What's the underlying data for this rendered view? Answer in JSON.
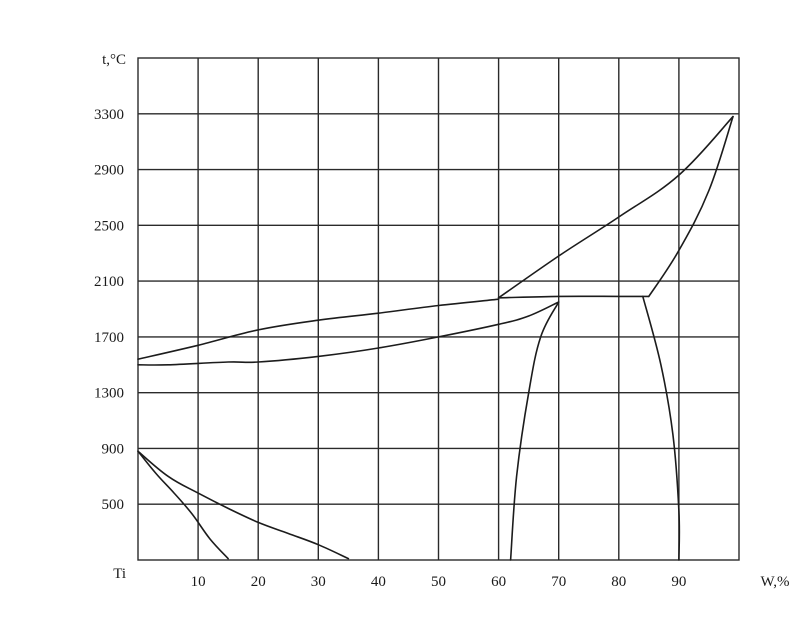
{
  "chart_data": {
    "type": "line",
    "title": "",
    "xlabel": "W,%",
    "ylabel": "t,°C",
    "origin_label": "Ti",
    "xlim": [
      0,
      100
    ],
    "ylim": [
      100,
      3700
    ],
    "x_ticks": [
      10,
      20,
      30,
      40,
      50,
      60,
      70,
      80,
      90
    ],
    "x_tick_labels": [
      "10",
      "20",
      "30",
      "40",
      "50",
      "60",
      "70",
      "80",
      "90"
    ],
    "y_ticks": [
      500,
      900,
      1300,
      1700,
      2100,
      2500,
      2900,
      3300
    ],
    "y_tick_labels": [
      "500",
      "900",
      "1300",
      "1700",
      "2100",
      "2500",
      "2900",
      "3300"
    ],
    "grid": true,
    "legend": "none",
    "series": [
      {
        "id": "liquidus-low",
        "points": [
          [
            0,
            1540
          ],
          [
            10,
            1640
          ],
          [
            20,
            1750
          ],
          [
            30,
            1820
          ],
          [
            40,
            1870
          ],
          [
            50,
            1925
          ],
          [
            60,
            1970
          ]
        ]
      },
      {
        "id": "solidus-low",
        "points": [
          [
            0,
            1500
          ],
          [
            5,
            1500
          ],
          [
            15,
            1520
          ],
          [
            20,
            1520
          ],
          [
            30,
            1560
          ],
          [
            40,
            1620
          ],
          [
            50,
            1700
          ],
          [
            60,
            1790
          ],
          [
            65,
            1850
          ],
          [
            70,
            1950
          ]
        ]
      },
      {
        "id": "liquidus-high",
        "points": [
          [
            60,
            1980
          ],
          [
            70,
            2280
          ],
          [
            80,
            2560
          ],
          [
            90,
            2860
          ],
          [
            99,
            3280
          ]
        ]
      },
      {
        "id": "eutectic-line",
        "points": [
          [
            60,
            1980
          ],
          [
            70,
            1990
          ],
          [
            80,
            1990
          ],
          [
            85,
            1990
          ]
        ]
      },
      {
        "id": "solidus-high",
        "points": [
          [
            85,
            1990
          ],
          [
            90,
            2320
          ],
          [
            95,
            2750
          ],
          [
            99,
            3280
          ]
        ]
      },
      {
        "id": "solvus-left",
        "points": [
          [
            62,
            100
          ],
          [
            63,
            700
          ],
          [
            65,
            1300
          ],
          [
            67,
            1700
          ],
          [
            70,
            1950
          ]
        ]
      },
      {
        "id": "solvus-right",
        "points": [
          [
            84,
            1990
          ],
          [
            87,
            1500
          ],
          [
            89,
            1000
          ],
          [
            90,
            450
          ],
          [
            90,
            100
          ]
        ]
      },
      {
        "id": "transformation-upper",
        "points": [
          [
            0,
            880
          ],
          [
            5,
            700
          ],
          [
            10,
            580
          ],
          [
            15,
            470
          ],
          [
            20,
            370
          ],
          [
            25,
            290
          ],
          [
            30,
            210
          ],
          [
            35,
            110
          ]
        ]
      },
      {
        "id": "transformation-lower",
        "points": [
          [
            0,
            880
          ],
          [
            3,
            720
          ],
          [
            6,
            580
          ],
          [
            9,
            430
          ],
          [
            12,
            250
          ],
          [
            15,
            110
          ]
        ]
      }
    ]
  }
}
